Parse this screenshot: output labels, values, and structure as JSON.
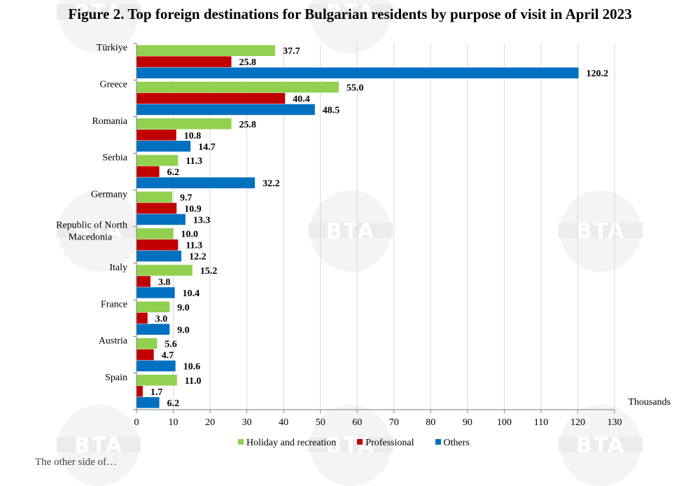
{
  "chart_data": {
    "type": "bar",
    "orientation": "horizontal",
    "title": "Figure 2. Top foreign destinations for Bulgarian residents by purpose of visit in April 2023",
    "xlabel": "Thousands",
    "ylabel": "",
    "xlim": [
      0,
      130
    ],
    "xticks": [
      0,
      10,
      20,
      30,
      40,
      50,
      60,
      70,
      80,
      90,
      100,
      110,
      120,
      130
    ],
    "grid": true,
    "legend_position": "bottom",
    "categories": [
      "Türkiye",
      "Greece",
      "Romania",
      "Serbia",
      "Germany",
      "Republic of North Macedonia",
      "Italy",
      "France",
      "Austria",
      "Spain"
    ],
    "category_lines": [
      [
        "Türkiye"
      ],
      [
        "Greece"
      ],
      [
        "Romania"
      ],
      [
        "Serbia"
      ],
      [
        "Germany"
      ],
      [
        "Republic of North",
        "Macedonia"
      ],
      [
        "Italy"
      ],
      [
        "France"
      ],
      [
        "Austria"
      ],
      [
        "Spain"
      ]
    ],
    "series": [
      {
        "name": "Holiday and recreation",
        "color": "#92d050",
        "values": [
          37.7,
          55.0,
          25.8,
          11.3,
          9.7,
          10.0,
          15.2,
          9.0,
          5.6,
          11.0
        ]
      },
      {
        "name": "Professional",
        "color": "#c00000",
        "values": [
          25.8,
          40.4,
          10.8,
          6.2,
          10.9,
          11.3,
          3.8,
          3.0,
          4.7,
          1.7
        ]
      },
      {
        "name": "Others",
        "color": "#0070c0",
        "values": [
          120.2,
          48.5,
          14.7,
          32.2,
          13.3,
          12.2,
          10.4,
          9.0,
          10.6,
          6.2
        ]
      }
    ]
  },
  "watermark": "BTA",
  "footer_fragment": "The other side of…"
}
